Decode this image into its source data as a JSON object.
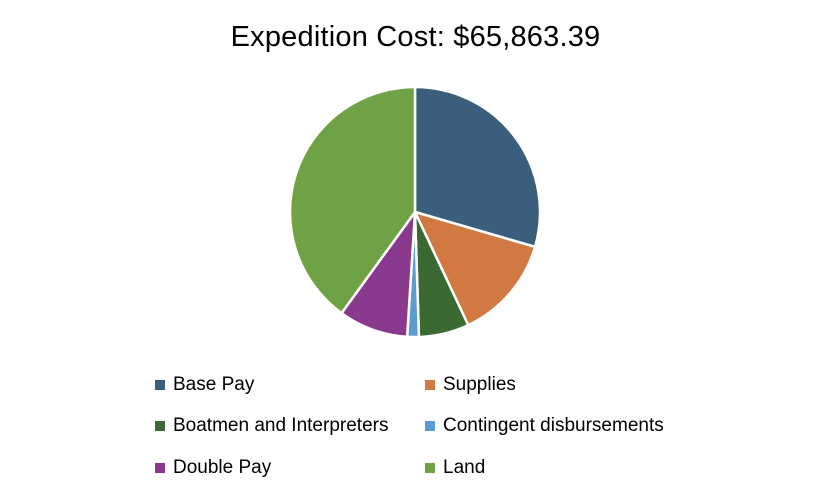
{
  "chart_data": {
    "type": "pie",
    "title": "Expedition Cost: $65,863.39",
    "total": 65863.39,
    "legend_position": "bottom",
    "slices": [
      {
        "label": "Base Pay",
        "percent": 29.5,
        "color": "#3b5e7d"
      },
      {
        "label": "Supplies",
        "percent": 13.5,
        "color": "#d17843"
      },
      {
        "label": "Boatmen and Interpreters",
        "percent": 6.5,
        "color": "#3a6a31"
      },
      {
        "label": "Contingent disbursements",
        "percent": 1.5,
        "color": "#5a9bd2"
      },
      {
        "label": "Double Pay",
        "percent": 9.0,
        "color": "#893a8e"
      },
      {
        "label": "Land",
        "percent": 40.0,
        "color": "#6ea245"
      }
    ]
  }
}
